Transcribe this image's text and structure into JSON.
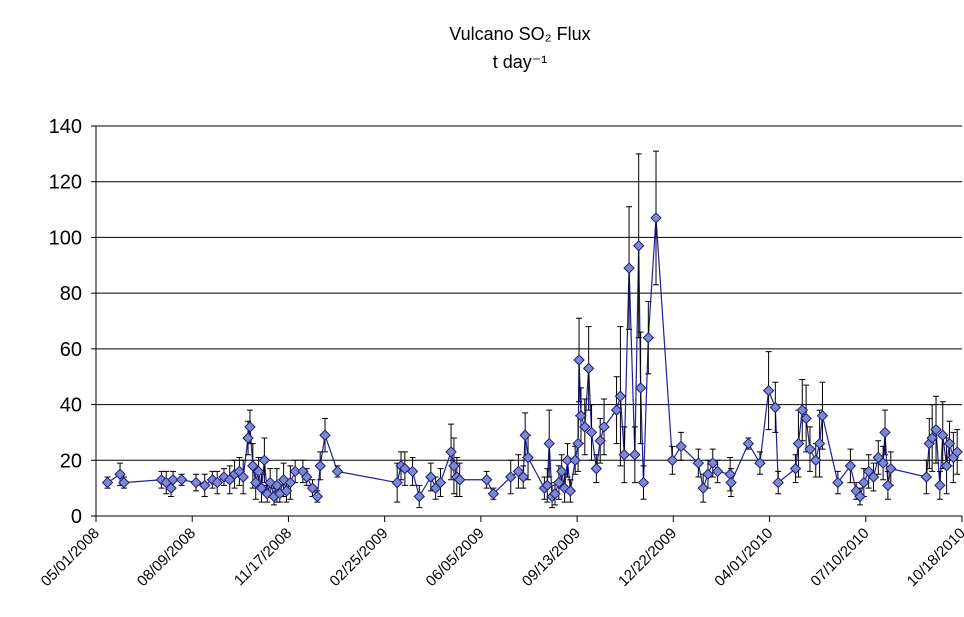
{
  "chart_data": {
    "type": "line",
    "title": "Vulcano SO₂ Flux",
    "subtitle": "t day⁻¹",
    "x": [
      "05/13/2008",
      "05/26/2008",
      "05/30/2008",
      "07/08/2008",
      "07/13/2008",
      "07/18/2008",
      "07/20/2008",
      "07/29/2008",
      "08/13/2008",
      "08/22/2008",
      "08/30/2008",
      "09/04/2008",
      "09/11/2008",
      "09/17/2008",
      "09/22/2008",
      "09/27/2008",
      "10/01/2008",
      "10/06/2008",
      "10/08/2008",
      "10/11/2008",
      "10/14/2008",
      "10/17/2008",
      "10/20/2008",
      "10/23/2008",
      "10/26/2008",
      "10/29/2008",
      "11/02/2008",
      "11/05/2008",
      "11/08/2008",
      "11/12/2008",
      "11/15/2008",
      "11/19/2008",
      "11/24/2008",
      "12/02/2008",
      "12/06/2008",
      "12/12/2008",
      "12/17/2008",
      "12/20/2008",
      "12/25/2008",
      "01/07/2009",
      "03/10/2009",
      "03/14/2009",
      "03/18/2009",
      "03/26/2009",
      "04/02/2009",
      "04/14/2009",
      "04/19/2009",
      "04/24/2009",
      "05/05/2009",
      "05/08/2009",
      "05/11/2009",
      "05/14/2009",
      "06/11/2009",
      "06/18/2009",
      "07/06/2009",
      "07/14/2009",
      "07/19/2009",
      "07/21/2009",
      "07/24/2009",
      "08/10/2009",
      "08/13/2009",
      "08/15/2009",
      "08/18/2009",
      "08/21/2009",
      "08/25/2009",
      "08/28/2009",
      "08/31/2009",
      "09/03/2009",
      "09/06/2009",
      "09/11/2009",
      "09/14/2009",
      "09/15/2009",
      "09/17/2009",
      "09/21/2009",
      "09/25/2009",
      "09/28/2009",
      "10/03/2009",
      "10/07/2009",
      "10/11/2009",
      "10/24/2009",
      "10/28/2009",
      "11/01/2009",
      "11/06/2009",
      "11/12/2009",
      "11/16/2009",
      "11/18/2009",
      "11/21/2009",
      "11/26/2009",
      "12/04/2009",
      "12/21/2009",
      "12/30/2009",
      "01/17/2010",
      "01/22/2010",
      "01/27/2010",
      "02/01/2010",
      "02/06/2010",
      "02/19/2010",
      "02/20/2010",
      "03/10/2010",
      "03/22/2010",
      "03/31/2010",
      "04/07/2010",
      "04/10/2010",
      "04/28/2010",
      "05/01/2010",
      "05/05/2010",
      "05/09/2010",
      "05/13/2010",
      "05/19/2010",
      "05/23/2010",
      "05/26/2010",
      "06/11/2010",
      "06/24/2010",
      "06/30/2010",
      "07/04/2010",
      "07/08/2010",
      "07/13/2010",
      "07/18/2010",
      "07/23/2010",
      "07/28/2010",
      "07/30/2010",
      "08/02/2010",
      "08/05/2010",
      "09/11/2010",
      "09/14/2010",
      "09/17/2010",
      "09/21/2010",
      "09/25/2010",
      "09/28/2010",
      "10/02/2010",
      "10/05/2010",
      "10/09/2010",
      "10/13/2010"
    ],
    "series": [
      {
        "color": "#7f88cc",
        "values": [
          12,
          15,
          12,
          13,
          12,
          10,
          13,
          13,
          12,
          11,
          13,
          12,
          14,
          13,
          15,
          16,
          14,
          28,
          32,
          18,
          12,
          16,
          10,
          20,
          8,
          12,
          7,
          11,
          8,
          13,
          9,
          12,
          16,
          16,
          14,
          10,
          7,
          18,
          29,
          16,
          12,
          18,
          17,
          16,
          7,
          14,
          10,
          12,
          23,
          18,
          14,
          13,
          13,
          8,
          14,
          16,
          14,
          29,
          21,
          10,
          11,
          26,
          7,
          8,
          12,
          16,
          10,
          20,
          9,
          20,
          26,
          56,
          36,
          32,
          53,
          30,
          17,
          27,
          32,
          38,
          43,
          22,
          89,
          22,
          97,
          46,
          12,
          64,
          107,
          20,
          25,
          19,
          10,
          15,
          19,
          16,
          15,
          12,
          26,
          19,
          45,
          39,
          12,
          17,
          26,
          38,
          35,
          24,
          20,
          26,
          36,
          12,
          18,
          9,
          7,
          12,
          16,
          14,
          21,
          19,
          30,
          11,
          17,
          14,
          26,
          28,
          31,
          11,
          29,
          18,
          26,
          21,
          23
        ],
        "errors": [
          2,
          4,
          2,
          3,
          4,
          3,
          3,
          2,
          3,
          4,
          3,
          4,
          3,
          5,
          5,
          5,
          6,
          6,
          6,
          8,
          6,
          5,
          5,
          8,
          3,
          5,
          3,
          6,
          3,
          6,
          4,
          6,
          4,
          4,
          3,
          3,
          2,
          5,
          6,
          2,
          7,
          5,
          6,
          5,
          4,
          5,
          4,
          5,
          10,
          10,
          7,
          6,
          3,
          2,
          6,
          6,
          4,
          8,
          8,
          4,
          6,
          12,
          4,
          4,
          6,
          6,
          5,
          6,
          4,
          5,
          10,
          15,
          10,
          10,
          15,
          10,
          5,
          8,
          10,
          12,
          25,
          10,
          22,
          10,
          33,
          20,
          6,
          13,
          24,
          5,
          5,
          5,
          5,
          5,
          5,
          4,
          6,
          5,
          2,
          4,
          14,
          9,
          4,
          5,
          12,
          11,
          12,
          8,
          6,
          12,
          12,
          4,
          6,
          3,
          3,
          5,
          6,
          5,
          6,
          6,
          8,
          5,
          6,
          6,
          9,
          12,
          12,
          5,
          12,
          10,
          8,
          9,
          8
        ]
      }
    ],
    "xlim": [
      "05/01/2008",
      "10/18/2010"
    ],
    "xticks": [
      "05/01/2008",
      "08/09/2008",
      "11/17/2008",
      "02/25/2009",
      "06/05/2009",
      "09/13/2009",
      "12/22/2009",
      "04/01/2010",
      "07/10/2010",
      "10/18/2010"
    ],
    "ylim": [
      0,
      140
    ],
    "yticks": [
      0,
      20,
      40,
      60,
      80,
      100,
      120,
      140
    ],
    "grid": true
  }
}
